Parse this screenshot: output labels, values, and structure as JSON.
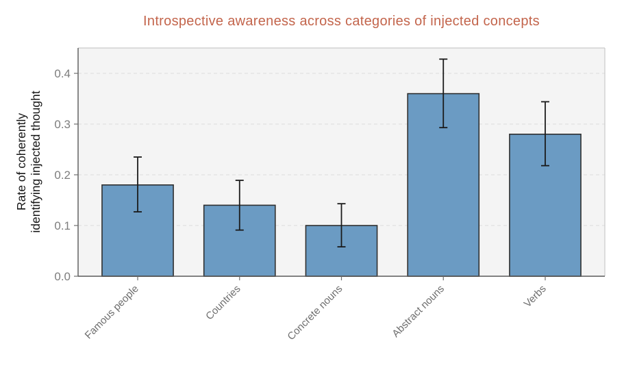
{
  "chart_data": {
    "type": "bar",
    "title": "Introspective awareness across categories of injected concepts",
    "categories": [
      "Famous people",
      "Countries",
      "Concrete nouns",
      "Abstract nouns",
      "Verbs"
    ],
    "values": [
      0.18,
      0.14,
      0.1,
      0.36,
      0.28
    ],
    "error_bars": {
      "lower": [
        0.127,
        0.091,
        0.058,
        0.293,
        0.218
      ],
      "upper": [
        0.235,
        0.189,
        0.143,
        0.428,
        0.344
      ]
    },
    "xlabel": "",
    "ylabel": "Rate of coherently identifying injected thought",
    "ylabel_lines": [
      "Rate of coherently",
      "identifying injected thought"
    ],
    "yticks": [
      0.0,
      0.1,
      0.2,
      0.3,
      0.4
    ],
    "ytick_labels": [
      "0.0",
      "0.1",
      "0.2",
      "0.3",
      "0.4"
    ],
    "ylim": [
      0,
      0.45
    ],
    "grid": "horizontal-dashed",
    "legend": "none",
    "x_tick_label_rotation_deg": -45,
    "colors": {
      "bar_fill": "#6b9bc3",
      "bar_edge": "#2f2f2f",
      "error_bar": "#1a1a1a",
      "title": "#c3654c",
      "ytick_label": "#7d7d7d",
      "category_label": "#6e6e6e",
      "axis_label": "#161616",
      "plot_background": "#f4f4f4",
      "gridline": "#e0e0e0",
      "spine_dark": "#595959",
      "spine_light": "#c9c9c9",
      "tick_mark": "#6e6e6e"
    }
  }
}
